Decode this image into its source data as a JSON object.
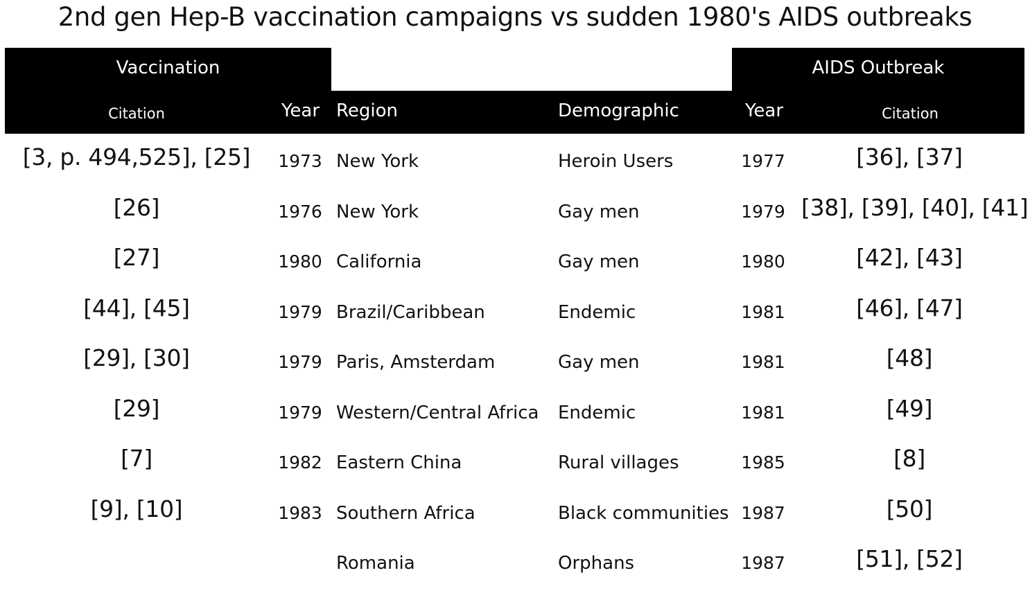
{
  "title": "2nd gen Hep-B vaccination campaigns vs sudden 1980's AIDS outbreaks",
  "groups": {
    "vaccination": "Vaccination",
    "aids": "AIDS Outbreak"
  },
  "columns": {
    "vacc_citation": "Citation",
    "vacc_year": "Year",
    "region": "Region",
    "demographic": "Demographic",
    "aids_year": "Year",
    "aids_citation": "Citation"
  },
  "rows": [
    {
      "vacc_citation": "[3, p. 494,525], [25]",
      "vacc_year": "1973",
      "region": "New York",
      "demographic": "Heroin Users",
      "aids_year": "1977",
      "aids_citation": "[36], [37]"
    },
    {
      "vacc_citation": "[26]",
      "vacc_year": "1976",
      "region": "New York",
      "demographic": "Gay men",
      "aids_year": "1979",
      "aids_citation": "[38], [39], [40], [41]"
    },
    {
      "vacc_citation": "[27]",
      "vacc_year": "1980",
      "region": "California",
      "demographic": "Gay men",
      "aids_year": "1980",
      "aids_citation": "[42], [43]"
    },
    {
      "vacc_citation": "[44], [45]",
      "vacc_year": "1979",
      "region": "Brazil/Caribbean",
      "demographic": "Endemic",
      "aids_year": "1981",
      "aids_citation": "[46], [47]"
    },
    {
      "vacc_citation": "[29], [30]",
      "vacc_year": "1979",
      "region": "Paris, Amsterdam",
      "demographic": "Gay men",
      "aids_year": "1981",
      "aids_citation": "[48]"
    },
    {
      "vacc_citation": "[29]",
      "vacc_year": "1979",
      "region": "Western/Central Africa",
      "demographic": "Endemic",
      "aids_year": "1981",
      "aids_citation": "[49]"
    },
    {
      "vacc_citation": "[7]",
      "vacc_year": "1982",
      "region": "Eastern China",
      "demographic": "Rural villages",
      "aids_year": "1985",
      "aids_citation": "[8]"
    },
    {
      "vacc_citation": "[9], [10]",
      "vacc_year": "1983",
      "region": "Southern Africa",
      "demographic": "Black communities",
      "aids_year": "1987",
      "aids_citation": "[50]"
    },
    {
      "vacc_citation": "",
      "vacc_year": "",
      "region": "Romania",
      "demographic": "Orphans",
      "aids_year": "1987",
      "aids_citation": "[51], [52]"
    }
  ]
}
